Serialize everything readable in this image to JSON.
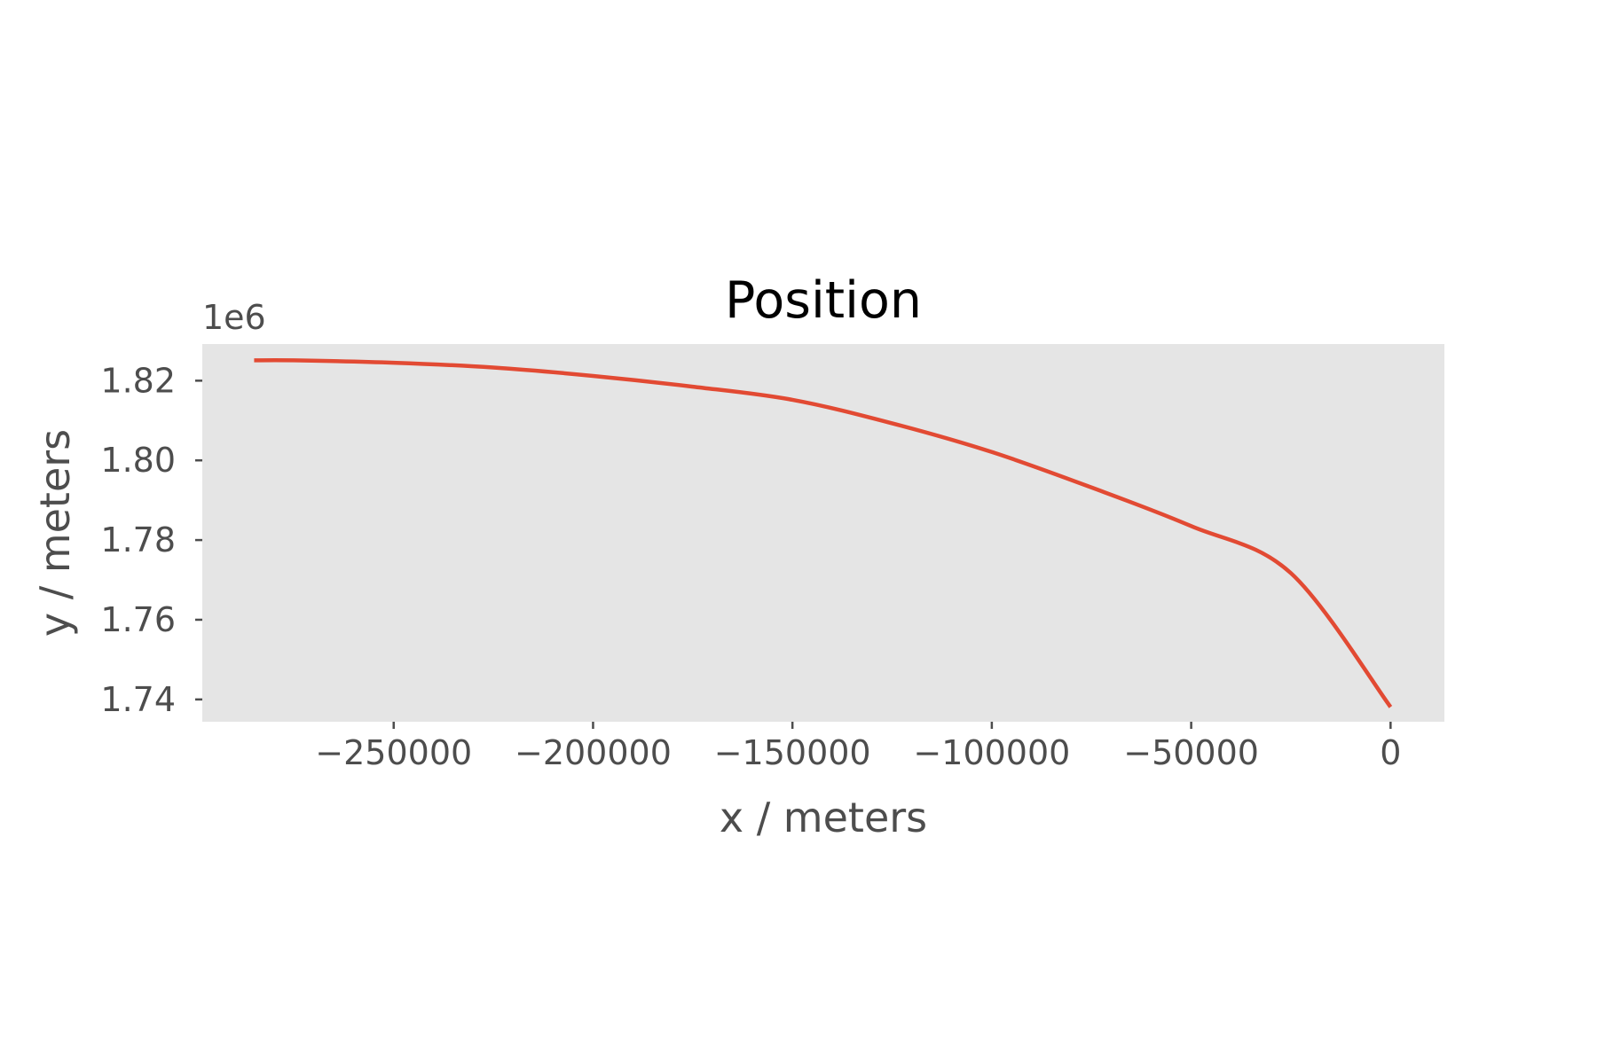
{
  "chart_data": {
    "type": "line",
    "title": "Position",
    "xlabel": "x / meters",
    "ylabel": "y / meters",
    "y_offset_label": "1e6",
    "xlim": [
      -298000,
      13500
    ],
    "ylim": [
      1.7344,
      1.8292
    ],
    "x_ticks": [
      -250000,
      -200000,
      -150000,
      -100000,
      -50000,
      0
    ],
    "x_tick_labels": [
      "−250000",
      "−200000",
      "−150000",
      "−100000",
      "−50000",
      "0"
    ],
    "y_ticks": [
      1.74,
      1.76,
      1.78,
      1.8,
      1.82
    ],
    "y_tick_labels": [
      "1.74",
      "1.76",
      "1.78",
      "1.80",
      "1.82"
    ],
    "grid": false,
    "background": "#e5e5e5",
    "series": [
      {
        "color": "#e24a33",
        "x": [
          -285000,
          -275000,
          -250000,
          -225000,
          -200000,
          -175000,
          -150000,
          -125000,
          -100000,
          -75000,
          -50000,
          -25000,
          0
        ],
        "y": [
          1.8251,
          1.8251,
          1.8245,
          1.8233,
          1.8212,
          1.8185,
          1.8152,
          1.8093,
          1.8021,
          1.7932,
          1.7835,
          1.7717,
          1.7381
        ]
      }
    ]
  }
}
